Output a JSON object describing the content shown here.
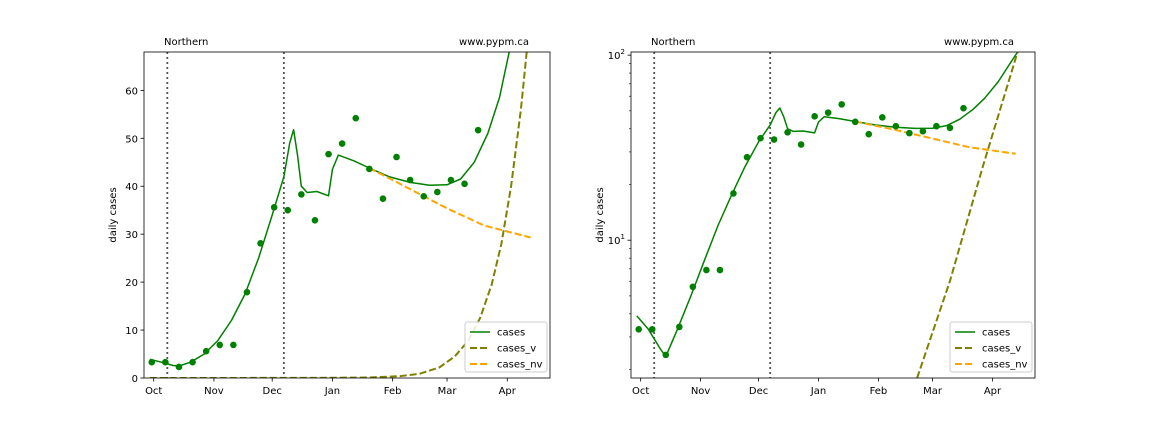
{
  "colors": {
    "cases": "#008000",
    "cases_v": "#808000",
    "cases_nv": "#ffa500",
    "points": "#008000",
    "vline": "#555555"
  },
  "chart_data": [
    {
      "type": "line",
      "yscale": "linear",
      "region": "Northern",
      "source": "www.pypm.ca",
      "xlabel": "",
      "ylabel": "daily cases",
      "xlim": [
        "2020-09-26",
        "2021-04-23"
      ],
      "ylim": [
        0,
        68
      ],
      "x_ticks": [
        {
          "date": "2020-10-01",
          "label": "Oct"
        },
        {
          "date": "2020-11-01",
          "label": "Nov"
        },
        {
          "date": "2020-12-01",
          "label": "Dec"
        },
        {
          "date": "2021-01-01",
          "label": "Jan"
        },
        {
          "date": "2021-02-01",
          "label": "Feb"
        },
        {
          "date": "2021-03-01",
          "label": "Mar"
        },
        {
          "date": "2021-04-01",
          "label": "Apr"
        }
      ],
      "y_ticks": [
        {
          "value": 0,
          "label": "0"
        },
        {
          "value": 10,
          "label": "10"
        },
        {
          "value": 20,
          "label": "20"
        },
        {
          "value": 30,
          "label": "30"
        },
        {
          "value": 40,
          "label": "40"
        },
        {
          "value": 50,
          "label": "50"
        },
        {
          "value": 60,
          "label": "60"
        }
      ],
      "vlines": [
        "2020-10-08",
        "2020-12-07"
      ],
      "legend": {
        "position": "lower-right",
        "entries": [
          "cases",
          "cases_v",
          "cases_nv"
        ]
      },
      "points": [
        {
          "x": "2020-09-30",
          "y": 3.3
        },
        {
          "x": "2020-10-07",
          "y": 3.3
        },
        {
          "x": "2020-10-14",
          "y": 2.3
        },
        {
          "x": "2020-10-21",
          "y": 3.3
        },
        {
          "x": "2020-10-28",
          "y": 5.6
        },
        {
          "x": "2020-11-04",
          "y": 6.9
        },
        {
          "x": "2020-11-11",
          "y": 6.9
        },
        {
          "x": "2020-11-18",
          "y": 17.9
        },
        {
          "x": "2020-11-25",
          "y": 28.1
        },
        {
          "x": "2020-12-02",
          "y": 35.6
        },
        {
          "x": "2020-12-09",
          "y": 35.0
        },
        {
          "x": "2020-12-16",
          "y": 38.3
        },
        {
          "x": "2020-12-23",
          "y": 32.9
        },
        {
          "x": "2020-12-30",
          "y": 46.7
        },
        {
          "x": "2021-01-06",
          "y": 48.9
        },
        {
          "x": "2021-01-13",
          "y": 54.2
        },
        {
          "x": "2021-01-20",
          "y": 43.6
        },
        {
          "x": "2021-01-27",
          "y": 37.4
        },
        {
          "x": "2021-02-03",
          "y": 46.1
        },
        {
          "x": "2021-02-10",
          "y": 41.3
        },
        {
          "x": "2021-02-17",
          "y": 37.9
        },
        {
          "x": "2021-02-24",
          "y": 38.8
        },
        {
          "x": "2021-03-03",
          "y": 41.3
        },
        {
          "x": "2021-03-10",
          "y": 40.5
        },
        {
          "x": "2021-03-17",
          "y": 51.7
        }
      ],
      "series": [
        {
          "name": "cases",
          "style": "solid",
          "points": [
            {
              "x": "2020-09-29",
              "y": 3.9
            },
            {
              "x": "2020-10-05",
              "y": 3.3
            },
            {
              "x": "2020-10-11",
              "y": 2.6
            },
            {
              "x": "2020-10-14",
              "y": 2.5
            },
            {
              "x": "2020-10-20",
              "y": 3.3
            },
            {
              "x": "2020-10-27",
              "y": 5.0
            },
            {
              "x": "2020-11-03",
              "y": 7.8
            },
            {
              "x": "2020-11-10",
              "y": 12.0
            },
            {
              "x": "2020-11-17",
              "y": 17.5
            },
            {
              "x": "2020-11-24",
              "y": 25.0
            },
            {
              "x": "2020-12-01",
              "y": 34.0
            },
            {
              "x": "2020-12-07",
              "y": 42.0
            },
            {
              "x": "2020-12-10",
              "y": 49.0
            },
            {
              "x": "2020-12-12",
              "y": 51.8
            },
            {
              "x": "2020-12-14",
              "y": 46.5
            },
            {
              "x": "2020-12-16",
              "y": 40.0
            },
            {
              "x": "2020-12-19",
              "y": 38.7
            },
            {
              "x": "2020-12-24",
              "y": 38.9
            },
            {
              "x": "2020-12-30",
              "y": 38.0
            },
            {
              "x": "2021-01-01",
              "y": 43.5
            },
            {
              "x": "2021-01-04",
              "y": 46.5
            },
            {
              "x": "2021-01-12",
              "y": 45.3
            },
            {
              "x": "2021-01-20",
              "y": 43.8
            },
            {
              "x": "2021-01-30",
              "y": 42.0
            },
            {
              "x": "2021-02-10",
              "y": 40.8
            },
            {
              "x": "2021-02-20",
              "y": 40.2
            },
            {
              "x": "2021-03-01",
              "y": 40.3
            },
            {
              "x": "2021-03-08",
              "y": 41.5
            },
            {
              "x": "2021-03-15",
              "y": 45.0
            },
            {
              "x": "2021-03-22",
              "y": 51.0
            },
            {
              "x": "2021-03-28",
              "y": 58.5
            },
            {
              "x": "2021-04-02",
              "y": 68.0
            }
          ]
        },
        {
          "name": "cases_v",
          "style": "dashed",
          "points": [
            {
              "x": "2020-09-29",
              "y": 0.0
            },
            {
              "x": "2020-12-20",
              "y": 0.02
            },
            {
              "x": "2021-01-20",
              "y": 0.1
            },
            {
              "x": "2021-02-05",
              "y": 0.4
            },
            {
              "x": "2021-02-15",
              "y": 0.9
            },
            {
              "x": "2021-02-25",
              "y": 2.2
            },
            {
              "x": "2021-03-05",
              "y": 4.5
            },
            {
              "x": "2021-03-12",
              "y": 7.8
            },
            {
              "x": "2021-03-18",
              "y": 12.5
            },
            {
              "x": "2021-03-24",
              "y": 19.5
            },
            {
              "x": "2021-03-29",
              "y": 28.0
            },
            {
              "x": "2021-04-03",
              "y": 40.0
            },
            {
              "x": "2021-04-08",
              "y": 56.0
            },
            {
              "x": "2021-04-11",
              "y": 68.0
            }
          ]
        },
        {
          "name": "cases_nv",
          "style": "dashed",
          "points": [
            {
              "x": "2021-01-20",
              "y": 43.8
            },
            {
              "x": "2021-02-10",
              "y": 39.4
            },
            {
              "x": "2021-03-01",
              "y": 35.4
            },
            {
              "x": "2021-03-20",
              "y": 31.8
            },
            {
              "x": "2021-04-13",
              "y": 29.3
            }
          ]
        }
      ]
    },
    {
      "type": "line",
      "yscale": "log",
      "region": "Northern",
      "source": "www.pypm.ca",
      "xlabel": "",
      "ylabel": "daily cases",
      "xlim": [
        "2020-09-26",
        "2021-04-23"
      ],
      "ylim": [
        1.8,
        104
      ],
      "x_ticks": [
        {
          "date": "2020-10-01",
          "label": "Oct"
        },
        {
          "date": "2020-11-01",
          "label": "Nov"
        },
        {
          "date": "2020-12-01",
          "label": "Dec"
        },
        {
          "date": "2021-01-01",
          "label": "Jan"
        },
        {
          "date": "2021-02-01",
          "label": "Feb"
        },
        {
          "date": "2021-03-01",
          "label": "Mar"
        },
        {
          "date": "2021-04-01",
          "label": "Apr"
        }
      ],
      "y_ticks": [
        {
          "value": 10,
          "label": "10",
          "sup": "1"
        },
        {
          "value": 100,
          "label": "10",
          "sup": "2"
        }
      ],
      "vlines": [
        "2020-10-08",
        "2020-12-07"
      ],
      "legend": {
        "position": "lower-right",
        "entries": [
          "cases",
          "cases_v",
          "cases_nv"
        ]
      },
      "points": [
        {
          "x": "2020-09-30",
          "y": 3.3
        },
        {
          "x": "2020-10-07",
          "y": 3.3
        },
        {
          "x": "2020-10-14",
          "y": 2.4
        },
        {
          "x": "2020-10-21",
          "y": 3.4
        },
        {
          "x": "2020-10-28",
          "y": 5.6
        },
        {
          "x": "2020-11-04",
          "y": 6.9
        },
        {
          "x": "2020-11-11",
          "y": 6.9
        },
        {
          "x": "2020-11-18",
          "y": 17.9
        },
        {
          "x": "2020-11-25",
          "y": 28.1
        },
        {
          "x": "2020-12-02",
          "y": 35.6
        },
        {
          "x": "2020-12-09",
          "y": 35.0
        },
        {
          "x": "2020-12-16",
          "y": 38.3
        },
        {
          "x": "2020-12-23",
          "y": 32.9
        },
        {
          "x": "2020-12-30",
          "y": 46.7
        },
        {
          "x": "2021-01-06",
          "y": 48.9
        },
        {
          "x": "2021-01-13",
          "y": 54.2
        },
        {
          "x": "2021-01-20",
          "y": 43.6
        },
        {
          "x": "2021-01-27",
          "y": 37.4
        },
        {
          "x": "2021-02-03",
          "y": 46.1
        },
        {
          "x": "2021-02-10",
          "y": 41.3
        },
        {
          "x": "2021-02-17",
          "y": 37.9
        },
        {
          "x": "2021-02-24",
          "y": 38.8
        },
        {
          "x": "2021-03-03",
          "y": 41.3
        },
        {
          "x": "2021-03-10",
          "y": 40.5
        },
        {
          "x": "2021-03-17",
          "y": 51.7
        }
      ],
      "series": [
        {
          "name": "cases",
          "style": "solid",
          "points": [
            {
              "x": "2020-09-29",
              "y": 3.9
            },
            {
              "x": "2020-10-05",
              "y": 3.3
            },
            {
              "x": "2020-10-11",
              "y": 2.6
            },
            {
              "x": "2020-10-14",
              "y": 2.35
            },
            {
              "x": "2020-10-20",
              "y": 3.3
            },
            {
              "x": "2020-10-27",
              "y": 5.0
            },
            {
              "x": "2020-11-03",
              "y": 7.8
            },
            {
              "x": "2020-11-10",
              "y": 12.0
            },
            {
              "x": "2020-11-17",
              "y": 17.5
            },
            {
              "x": "2020-11-24",
              "y": 25.0
            },
            {
              "x": "2020-12-01",
              "y": 34.0
            },
            {
              "x": "2020-12-07",
              "y": 42.0
            },
            {
              "x": "2020-12-10",
              "y": 49.0
            },
            {
              "x": "2020-12-12",
              "y": 51.8
            },
            {
              "x": "2020-12-14",
              "y": 46.5
            },
            {
              "x": "2020-12-16",
              "y": 40.0
            },
            {
              "x": "2020-12-19",
              "y": 38.7
            },
            {
              "x": "2020-12-24",
              "y": 38.9
            },
            {
              "x": "2020-12-30",
              "y": 38.0
            },
            {
              "x": "2021-01-01",
              "y": 43.5
            },
            {
              "x": "2021-01-04",
              "y": 46.5
            },
            {
              "x": "2021-01-12",
              "y": 45.3
            },
            {
              "x": "2021-01-20",
              "y": 43.8
            },
            {
              "x": "2021-01-30",
              "y": 42.0
            },
            {
              "x": "2021-02-10",
              "y": 40.8
            },
            {
              "x": "2021-02-20",
              "y": 40.2
            },
            {
              "x": "2021-03-01",
              "y": 40.3
            },
            {
              "x": "2021-03-08",
              "y": 41.5
            },
            {
              "x": "2021-03-15",
              "y": 45.0
            },
            {
              "x": "2021-03-22",
              "y": 51.0
            },
            {
              "x": "2021-03-28",
              "y": 58.5
            },
            {
              "x": "2021-04-04",
              "y": 72.0
            },
            {
              "x": "2021-04-10",
              "y": 90.0
            },
            {
              "x": "2021-04-14",
              "y": 104.0
            }
          ]
        },
        {
          "name": "cases_v",
          "style": "dashed",
          "points": [
            {
              "x": "2021-02-21",
              "y": 1.8
            },
            {
              "x": "2021-03-10",
              "y": 6.0
            },
            {
              "x": "2021-03-27",
              "y": 25.0
            },
            {
              "x": "2021-04-14",
              "y": 104.0
            }
          ]
        },
        {
          "name": "cases_nv",
          "style": "dashed",
          "points": [
            {
              "x": "2021-01-20",
              "y": 43.8
            },
            {
              "x": "2021-02-10",
              "y": 39.4
            },
            {
              "x": "2021-03-01",
              "y": 35.4
            },
            {
              "x": "2021-03-20",
              "y": 31.8
            },
            {
              "x": "2021-04-13",
              "y": 29.3
            }
          ]
        }
      ]
    }
  ]
}
